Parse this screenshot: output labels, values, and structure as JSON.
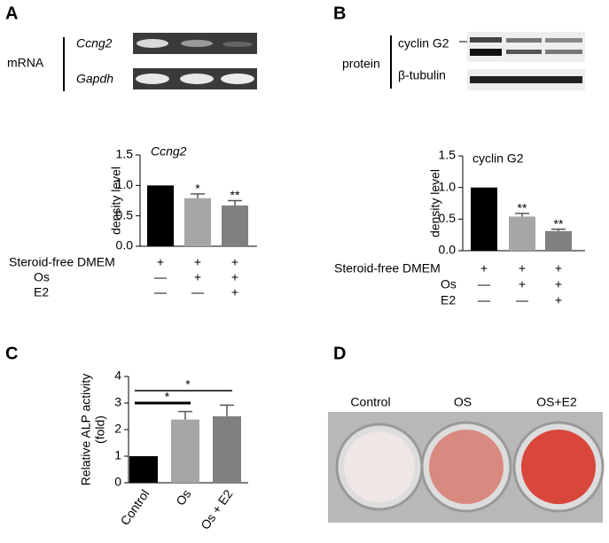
{
  "panel_labels": [
    "A",
    "B",
    "C",
    "D"
  ],
  "blot_a": {
    "group": "mRNA",
    "rows": [
      "Ccng2",
      "Gapdh"
    ]
  },
  "blot_b": {
    "group": "protein",
    "rows": [
      "cyclin G2",
      "β-tubulin"
    ]
  },
  "photo_d": {
    "labels": [
      "Control",
      "OS",
      "OS+E2"
    ]
  },
  "chart_data": [
    {
      "type": "bar",
      "title": "Ccng2",
      "ylabel": "density level",
      "categories": [
        null,
        null,
        null
      ],
      "values": [
        1.0,
        0.79,
        0.67
      ],
      "errors": [
        0,
        0.07,
        0.08
      ],
      "colors": [
        "#000000",
        "#a6a6a6",
        "#808080"
      ],
      "significance": [
        null,
        "*",
        "**"
      ],
      "ylim": [
        0,
        1.5
      ],
      "yticks": [
        {
          "value": 0,
          "label": "0.0"
        },
        0.5,
        {
          "value": 1,
          "label": "1.0"
        },
        1.5
      ],
      "conditions": [
        {
          "label": "Steroid-free DMEM",
          "marks": [
            "+",
            "+",
            "+"
          ]
        },
        {
          "label": "Os",
          "marks": [
            "—",
            "+",
            "+"
          ]
        },
        {
          "label": "E2",
          "marks": [
            "—",
            "—",
            "+"
          ]
        }
      ]
    },
    {
      "type": "bar",
      "title": "cyclin G2",
      "ylabel": "density level",
      "categories": [
        null,
        null,
        null
      ],
      "values": [
        1.0,
        0.54,
        0.31
      ],
      "errors": [
        0,
        0.05,
        0.03
      ],
      "colors": [
        "#000000",
        "#a6a6a6",
        "#808080"
      ],
      "significance": [
        null,
        "**",
        "**"
      ],
      "ylim": [
        0,
        1.5
      ],
      "yticks": [
        {
          "value": 0,
          "label": "0.0"
        },
        0.5,
        {
          "value": 1,
          "label": "1.0"
        },
        1.5
      ],
      "conditions": [
        {
          "label": "Steroid-free DMEM",
          "marks": [
            "+",
            "+",
            "+"
          ]
        },
        {
          "label": "Os",
          "marks": [
            "—",
            "+",
            "+"
          ]
        },
        {
          "label": "E2",
          "marks": [
            "—",
            "—",
            "+"
          ]
        }
      ]
    },
    {
      "type": "bar",
      "ylabel": [
        "Relative ALP activity",
        "(fold)"
      ],
      "categories": [
        "Control",
        "Os",
        "Os + E2"
      ],
      "values": [
        1.0,
        2.38,
        2.5
      ],
      "errors": [
        0,
        0.3,
        0.42
      ],
      "colors": [
        "#000000",
        "#a6a6a6",
        "#808080"
      ],
      "brackets": [
        "*",
        "*"
      ],
      "ylim": [
        0,
        4
      ],
      "yticks": [
        0,
        1,
        2,
        3,
        4
      ]
    }
  ]
}
